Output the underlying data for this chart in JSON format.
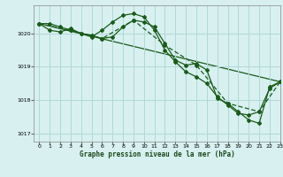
{
  "title": "Graphe pression niveau de la mer (hPa)",
  "background_color": "#d8f0f0",
  "grid_color": "#b0d8d8",
  "line_color": "#1a5c1a",
  "xlim": [
    -0.5,
    23
  ],
  "ylim": [
    1016.75,
    1020.85
  ],
  "yticks": [
    1017,
    1018,
    1019,
    1020
  ],
  "xticks": [
    0,
    1,
    2,
    3,
    4,
    5,
    6,
    7,
    8,
    9,
    10,
    11,
    12,
    13,
    14,
    15,
    16,
    17,
    18,
    19,
    20,
    21,
    22,
    23
  ],
  "series1_x": [
    0,
    1,
    2,
    3,
    4,
    5,
    6,
    7,
    8,
    9,
    10,
    11,
    12,
    13,
    14,
    15,
    16,
    17,
    18,
    19,
    20,
    21,
    22,
    23
  ],
  "series1_y": [
    1020.3,
    1020.3,
    1020.2,
    1020.1,
    1020.0,
    1019.95,
    1019.85,
    1019.9,
    1020.2,
    1020.4,
    1020.35,
    1020.2,
    1019.7,
    1019.2,
    1019.05,
    1019.1,
    1018.9,
    1018.05,
    1017.9,
    1017.65,
    1017.4,
    1017.3,
    1018.4,
    1018.55
  ],
  "series2_x": [
    0,
    1,
    2,
    3,
    4,
    5,
    6,
    7,
    8,
    9,
    10,
    11,
    12,
    13,
    14,
    15,
    16,
    17,
    18,
    19,
    20,
    21,
    22,
    23
  ],
  "series2_y": [
    1020.3,
    1020.1,
    1020.05,
    1020.15,
    1020.0,
    1019.9,
    1020.1,
    1020.35,
    1020.55,
    1020.6,
    1020.5,
    1020.1,
    1019.5,
    1019.15,
    1018.85,
    1018.7,
    1018.5,
    1018.1,
    1017.85,
    1017.6,
    1017.55,
    1017.65,
    1018.35,
    1018.55
  ],
  "series3_x": [
    0,
    3,
    6,
    9,
    12,
    15,
    18,
    21,
    23
  ],
  "series3_y": [
    1020.3,
    1020.1,
    1019.85,
    1020.4,
    1019.65,
    1019.05,
    1017.9,
    1017.65,
    1018.55
  ],
  "series4_x": [
    0,
    23
  ],
  "series4_y": [
    1020.3,
    1018.55
  ]
}
